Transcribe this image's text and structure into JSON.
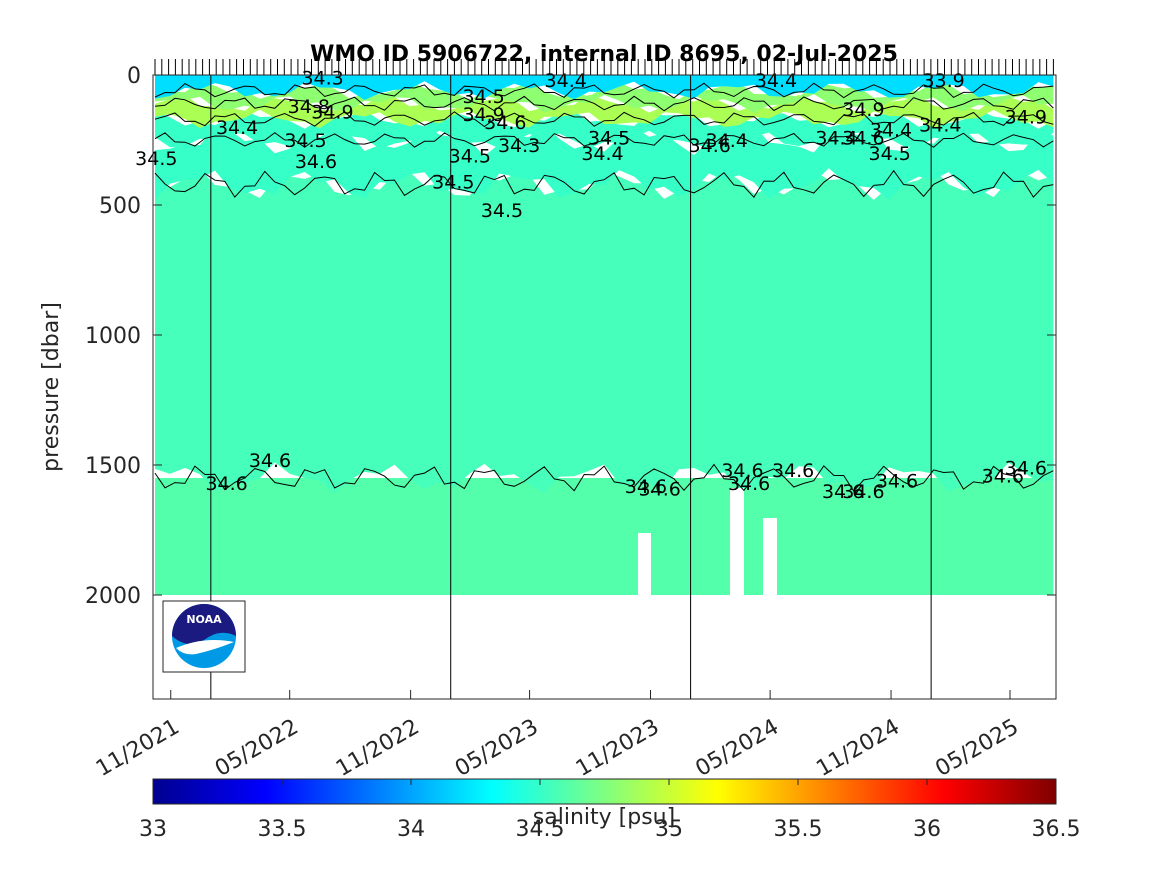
{
  "chart_data": {
    "type": "heatmap",
    "title": "WMO ID 5906722, internal ID 8695, 02-Jul-2025",
    "ylabel": "pressure [dbar]",
    "xlabel": "",
    "y_reversed": true,
    "ylim": [
      0,
      2400
    ],
    "xlim": [
      "2021-10-05",
      "2025-07-10"
    ],
    "yticks": [
      0,
      500,
      1000,
      1500,
      2000
    ],
    "ytick_labels": [
      "0",
      "500",
      "1000",
      "1500",
      "2000"
    ],
    "xtick_dates": [
      "2021-11-01",
      "2022-05-01",
      "2022-11-01",
      "2023-05-01",
      "2023-11-01",
      "2024-05-01",
      "2024-11-01",
      "2025-05-01"
    ],
    "xtick_labels": [
      "11/2021",
      "05/2022",
      "11/2022",
      "05/2023",
      "11/2023",
      "05/2024",
      "11/2024",
      "05/2025"
    ],
    "year_lines": [
      "2022-01-01",
      "2023-01-01",
      "2024-01-01",
      "2025-01-01"
    ],
    "profile_end_pressure": 2000,
    "colorbar": {
      "label": "salinity [psu]",
      "range": [
        33,
        36.5
      ],
      "ticks": [
        "33",
        "33.5",
        "34",
        "34.5",
        "35",
        "35.5",
        "36",
        "36.5"
      ]
    },
    "salinity_layers": [
      {
        "top": 0,
        "bottom": 60,
        "value": 34.2
      },
      {
        "top": 60,
        "bottom": 110,
        "value": 34.8
      },
      {
        "top": 110,
        "bottom": 170,
        "value": 34.9
      },
      {
        "top": 170,
        "bottom": 250,
        "value": 34.5
      },
      {
        "top": 250,
        "bottom": 420,
        "value": 34.5
      },
      {
        "top": 420,
        "bottom": 1550,
        "value": 34.55
      },
      {
        "top": 1550,
        "bottom": 2000,
        "value": 34.6
      }
    ],
    "contour_labels": [
      {
        "date": "2022-06-20",
        "pressure": 10,
        "text": "34.3"
      },
      {
        "date": "2022-05-30",
        "pressure": 120,
        "text": "34.8"
      },
      {
        "date": "2022-07-05",
        "pressure": 140,
        "text": "34.9"
      },
      {
        "date": "2022-02-10",
        "pressure": 200,
        "text": "34.4"
      },
      {
        "date": "2022-05-25",
        "pressure": 250,
        "text": "34.5"
      },
      {
        "date": "2022-06-10",
        "pressure": 330,
        "text": "34.6"
      },
      {
        "date": "2021-10-10",
        "pressure": 320,
        "text": "34.5"
      },
      {
        "date": "2022-04-01",
        "pressure": 1480,
        "text": "34.6"
      },
      {
        "date": "2022-01-25",
        "pressure": 1570,
        "text": "34.6"
      },
      {
        "date": "2023-02-20",
        "pressure": 80,
        "text": "34.5"
      },
      {
        "date": "2023-02-20",
        "pressure": 150,
        "text": "34.9"
      },
      {
        "date": "2023-03-25",
        "pressure": 180,
        "text": "34.6"
      },
      {
        "date": "2023-04-15",
        "pressure": 270,
        "text": "34.3"
      },
      {
        "date": "2023-01-30",
        "pressure": 310,
        "text": "34.5"
      },
      {
        "date": "2023-01-05",
        "pressure": 410,
        "text": "34.5"
      },
      {
        "date": "2023-03-20",
        "pressure": 520,
        "text": "34.5"
      },
      {
        "date": "2023-06-25",
        "pressure": 20,
        "text": "34.4"
      },
      {
        "date": "2023-08-30",
        "pressure": 240,
        "text": "34.5"
      },
      {
        "date": "2023-08-20",
        "pressure": 300,
        "text": "34.4"
      },
      {
        "date": "2023-10-25",
        "pressure": 1580,
        "text": "34.6"
      },
      {
        "date": "2023-11-15",
        "pressure": 1590,
        "text": "34.6"
      },
      {
        "date": "2024-05-10",
        "pressure": 20,
        "text": "34.4"
      },
      {
        "date": "2024-02-25",
        "pressure": 250,
        "text": "34.4"
      },
      {
        "date": "2024-01-30",
        "pressure": 270,
        "text": "34.6"
      },
      {
        "date": "2024-03-20",
        "pressure": 1520,
        "text": "34.6"
      },
      {
        "date": "2024-03-30",
        "pressure": 1570,
        "text": "34.6"
      },
      {
        "date": "2024-06-05",
        "pressure": 1520,
        "text": "34.6"
      },
      {
        "date": "2024-08-10",
        "pressure": 240,
        "text": "34.4"
      },
      {
        "date": "2024-09-20",
        "pressure": 240,
        "text": "34.6"
      },
      {
        "date": "2024-09-20",
        "pressure": 130,
        "text": "34.9"
      },
      {
        "date": "2024-10-30",
        "pressure": 300,
        "text": "34.5"
      },
      {
        "date": "2024-11-01",
        "pressure": 210,
        "text": "34.4"
      },
      {
        "date": "2024-08-20",
        "pressure": 1600,
        "text": "34.6"
      },
      {
        "date": "2024-09-20",
        "pressure": 1600,
        "text": "34.6"
      },
      {
        "date": "2024-11-10",
        "pressure": 1560,
        "text": "34.6"
      },
      {
        "date": "2025-01-20",
        "pressure": 20,
        "text": "33.9"
      },
      {
        "date": "2025-01-15",
        "pressure": 190,
        "text": "34.4"
      },
      {
        "date": "2025-05-25",
        "pressure": 160,
        "text": "34.9"
      },
      {
        "date": "2025-04-20",
        "pressure": 1540,
        "text": "34.6"
      },
      {
        "date": "2025-05-25",
        "pressure": 1510,
        "text": "34.6"
      }
    ]
  },
  "logo": {
    "text": "NOAA"
  }
}
